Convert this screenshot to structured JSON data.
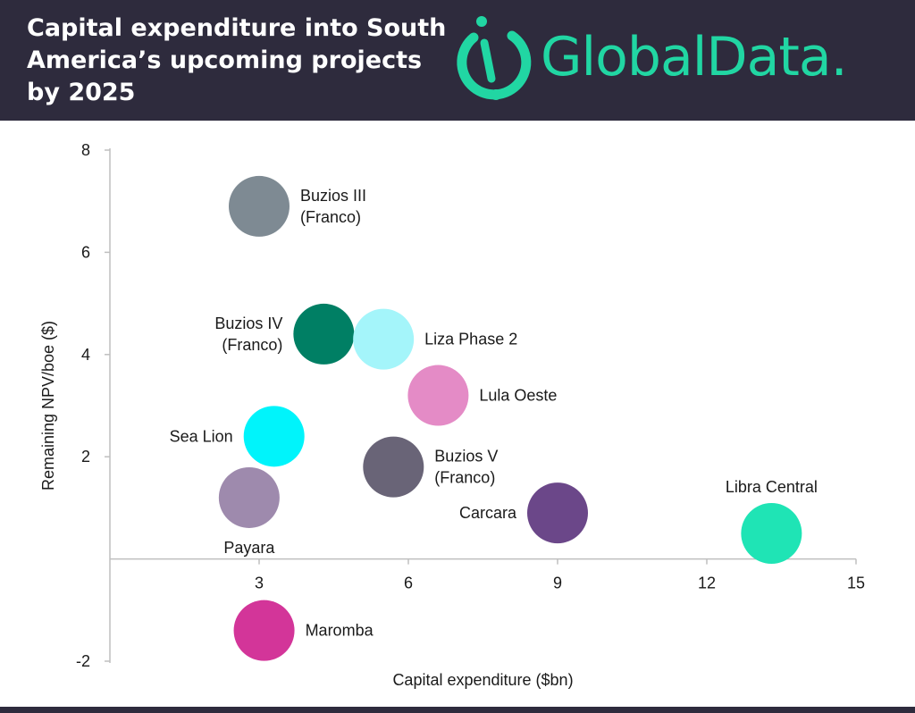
{
  "header": {
    "title": "Capital expenditure into South America’s upcoming projects by 2025",
    "logo_text": "GlobalData.",
    "brand_color": "#21d6a3",
    "background_color": "#2e2b3d"
  },
  "chart_data": {
    "type": "scatter",
    "title": "Capital expenditure into South America’s upcoming projects by 2025",
    "xlabel": "Capital expenditure ($bn)",
    "ylabel": "Remaining NPV/boe ($)",
    "xlim": [
      0,
      15
    ],
    "ylim": [
      -2,
      8
    ],
    "x_ticks": [
      3,
      6,
      9,
      12,
      15
    ],
    "y_ticks": [
      -2,
      2,
      4,
      6,
      8
    ],
    "grid": false,
    "points": [
      {
        "label": "Buzios III (Franco)",
        "label_lines": [
          "Buzios III",
          "(Franco)"
        ],
        "x": 3.0,
        "y": 6.9,
        "color": "#7e8a93",
        "label_side": "right"
      },
      {
        "label": "Buzios IV (Franco)",
        "label_lines": [
          "Buzios IV",
          "(Franco)"
        ],
        "x": 4.3,
        "y": 4.4,
        "color": "#007f64",
        "label_side": "left"
      },
      {
        "label": "Liza Phase 2",
        "label_lines": [
          "Liza Phase 2"
        ],
        "x": 5.5,
        "y": 4.3,
        "color": "#a4f5fa",
        "label_side": "right"
      },
      {
        "label": "Lula Oeste",
        "label_lines": [
          "Lula Oeste"
        ],
        "x": 6.6,
        "y": 3.2,
        "color": "#e48bc6",
        "label_side": "right"
      },
      {
        "label": "Sea Lion",
        "label_lines": [
          "Sea Lion"
        ],
        "x": 3.3,
        "y": 2.4,
        "color": "#00f4fb",
        "label_side": "left"
      },
      {
        "label": "Buzios V (Franco)",
        "label_lines": [
          "Buzios V",
          "(Franco)"
        ],
        "x": 5.7,
        "y": 1.8,
        "color": "#696477",
        "label_side": "right"
      },
      {
        "label": "Payara",
        "label_lines": [
          "Payara"
        ],
        "x": 2.8,
        "y": 1.2,
        "color": "#9e8aad",
        "label_side": "below"
      },
      {
        "label": "Carcara",
        "label_lines": [
          "Carcara"
        ],
        "x": 9.0,
        "y": 0.9,
        "color": "#6b4789",
        "label_side": "left"
      },
      {
        "label": "Libra Central",
        "label_lines": [
          "Libra Central"
        ],
        "x": 13.3,
        "y": 0.5,
        "color": "#1fe4b5",
        "label_side": "above"
      },
      {
        "label": "Maromba",
        "label_lines": [
          "Maromba"
        ],
        "x": 3.1,
        "y": -1.4,
        "color": "#d33599",
        "label_side": "right"
      }
    ]
  }
}
